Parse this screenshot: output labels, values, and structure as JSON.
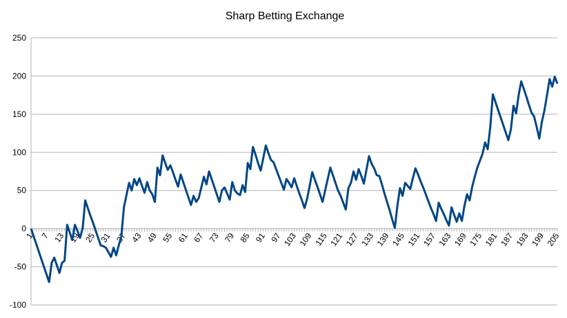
{
  "chart_data": {
    "type": "line",
    "title": "Sharp Betting Exchange",
    "categories": [
      1,
      null,
      null,
      null,
      null,
      null,
      7,
      null,
      null,
      null,
      null,
      null,
      13,
      null,
      null,
      null,
      null,
      null,
      19,
      null,
      null,
      null,
      null,
      null,
      25,
      null,
      null,
      null,
      null,
      null,
      31,
      null,
      null,
      null,
      null,
      null,
      37,
      null,
      null,
      null,
      null,
      null,
      43,
      null,
      null,
      null,
      null,
      null,
      49,
      null,
      null,
      null,
      null,
      null,
      55,
      null,
      null,
      null,
      null,
      null,
      61,
      null,
      null,
      null,
      null,
      null,
      67,
      null,
      null,
      null,
      null,
      null,
      73,
      null,
      null,
      null,
      null,
      null,
      79,
      null,
      null,
      null,
      null,
      null,
      85,
      null,
      null,
      null,
      null,
      null,
      91,
      null,
      null,
      null,
      null,
      null,
      97,
      null,
      null,
      null,
      null,
      null,
      103,
      null,
      null,
      null,
      null,
      null,
      109,
      null,
      null,
      null,
      null,
      null,
      115,
      null,
      null,
      null,
      null,
      null,
      121,
      null,
      null,
      null,
      null,
      null,
      127,
      null,
      null,
      null,
      null,
      null,
      133,
      null,
      null,
      null,
      null,
      null,
      139,
      null,
      null,
      null,
      null,
      null,
      145,
      null,
      null,
      null,
      null,
      null,
      151,
      null,
      null,
      null,
      null,
      null,
      157,
      null,
      null,
      null,
      null,
      null,
      163,
      null,
      null,
      null,
      null,
      null,
      169,
      null,
      null,
      null,
      null,
      null,
      175,
      null,
      null,
      null,
      null,
      null,
      181,
      null,
      null,
      null,
      null,
      null,
      187,
      null,
      null,
      null,
      null,
      null,
      193,
      null,
      null,
      null,
      null,
      null,
      199,
      null,
      null,
      null,
      null,
      null,
      205
    ],
    "values": [
      0,
      -10,
      -20,
      -30,
      -40,
      -50,
      -60,
      -70,
      -45,
      -38,
      -48,
      -58,
      -45,
      -42,
      5,
      -5,
      -15,
      5,
      -3,
      -12,
      0,
      37,
      27,
      17,
      8,
      -2,
      -12,
      -22,
      -23,
      -25,
      -31,
      -37,
      -25,
      -35,
      -22,
      -10,
      28,
      44,
      60,
      50,
      65,
      57,
      66,
      56,
      47,
      61,
      50,
      45,
      35,
      80,
      70,
      96,
      86,
      77,
      83,
      74,
      64,
      55,
      71,
      61,
      51,
      41,
      31,
      43,
      35,
      40,
      54,
      68,
      58,
      75,
      65,
      55,
      45,
      35,
      50,
      54,
      46,
      38,
      61,
      50,
      46,
      44,
      57,
      48,
      86,
      78,
      107,
      97,
      86,
      76,
      92,
      109,
      99,
      90,
      87,
      78,
      69,
      60,
      51,
      65,
      60,
      54,
      66,
      56,
      46,
      37,
      27,
      39,
      56,
      74,
      64,
      55,
      45,
      35,
      50,
      65,
      80,
      70,
      60,
      50,
      43,
      34,
      25,
      53,
      60,
      75,
      64,
      78,
      69,
      59,
      77,
      95,
      85,
      79,
      70,
      69,
      58,
      46,
      35,
      24,
      12,
      1,
      30,
      53,
      43,
      60,
      56,
      52,
      66,
      79,
      71,
      62,
      54,
      45,
      36,
      27,
      19,
      10,
      34,
      26,
      19,
      11,
      4,
      28,
      18,
      9,
      20,
      10,
      30,
      45,
      37,
      55,
      68,
      80,
      89,
      98,
      113,
      104,
      133,
      176,
      166,
      156,
      146,
      136,
      126,
      116,
      130,
      161,
      151,
      175,
      193,
      183,
      173,
      162,
      152,
      147,
      133,
      118,
      140,
      155,
      175,
      196,
      186,
      199,
      190
    ],
    "color": "#004586",
    "ylim": [
      -100,
      250
    ],
    "yticks": [
      -100,
      -50,
      0,
      50,
      100,
      150,
      200,
      250
    ],
    "grid": true
  }
}
